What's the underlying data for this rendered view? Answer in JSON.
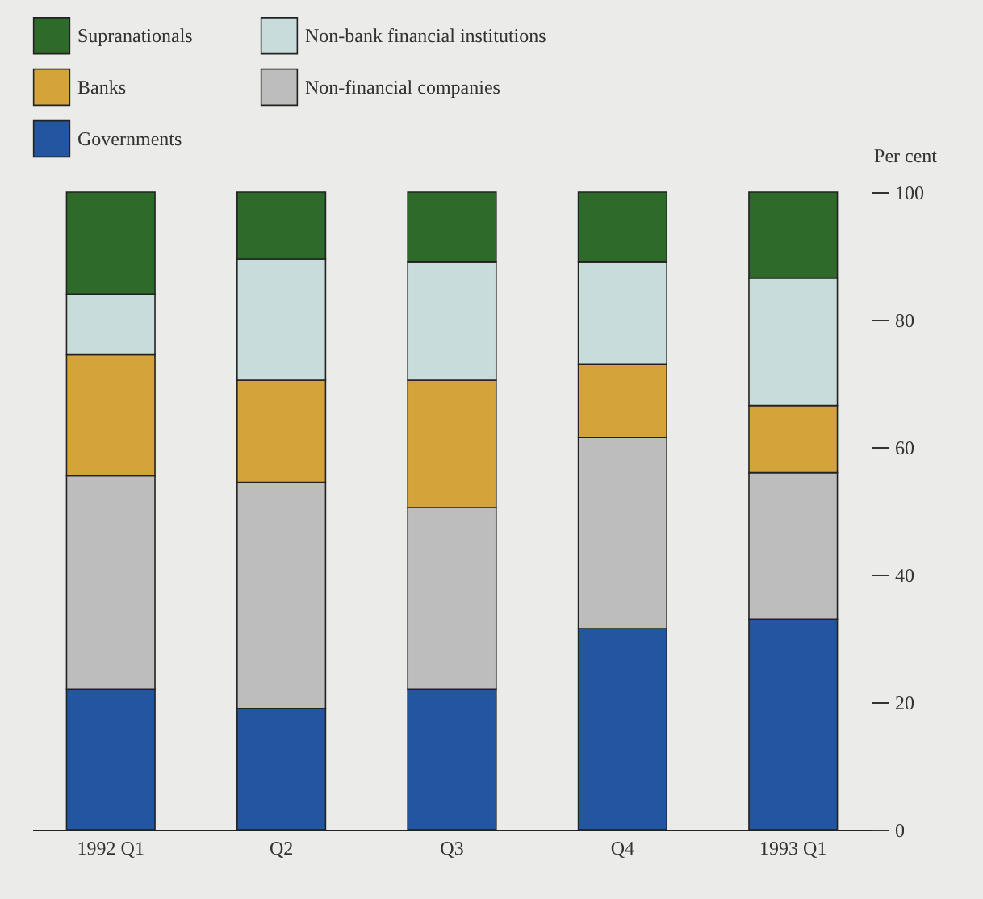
{
  "chart_data": {
    "type": "bar",
    "stacked": true,
    "ylabel": "Per cent",
    "categories": [
      "1992 Q1",
      "Q2",
      "Q3",
      "Q4",
      "1993 Q1"
    ],
    "series": [
      {
        "name": "Governments",
        "color": "#2356a0",
        "values": [
          22,
          19,
          22,
          31.5,
          33
        ]
      },
      {
        "name": "Non-financial companies",
        "color": "#bdbdbd",
        "values": [
          33.5,
          35.5,
          28.5,
          30,
          23
        ]
      },
      {
        "name": "Banks",
        "color": "#d4a43a",
        "values": [
          19,
          16,
          20,
          11.5,
          10.5
        ]
      },
      {
        "name": "Non-bank financial institutions",
        "color": "#c8dcdc",
        "values": [
          9.5,
          19,
          18.5,
          16,
          20
        ]
      },
      {
        "name": "Supranationals",
        "color": "#2e6b2a",
        "values": [
          16,
          10.5,
          11,
          11,
          13.5
        ]
      }
    ],
    "ylim": [
      0,
      100
    ],
    "yticks": [
      0,
      20,
      40,
      60,
      80,
      100
    ],
    "grid": false,
    "legend": "top left"
  }
}
